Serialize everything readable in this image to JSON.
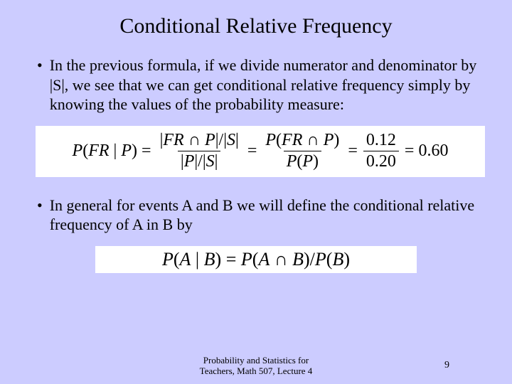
{
  "background_color": "#ccccff",
  "text_color": "#000000",
  "formula_bg": "#ffffff",
  "title": "Conditional Relative Frequency",
  "title_fontsize": 30,
  "body_fontsize": 22,
  "bullets": [
    "In the previous formula, if we divide numerator and denominator by |S|, we see that we can get conditional relative frequency simply by knowing the values of the probability measure:",
    "In general for events A and B we will define the conditional relative frequency of A in B by"
  ],
  "formula1": {
    "lhs": "P(FR | P)",
    "frac1_num": "|FR ∩ P| / |S|",
    "frac1_den": "|P| / |S|",
    "frac2_num": "P(FR ∩ P)",
    "frac2_den": "P(P)",
    "frac3_num": "0.12",
    "frac3_den": "0.20",
    "result": "0.60"
  },
  "formula2": "P(A | B) = P(A ∩ B) / P(B)",
  "footer_line1": "Probability and Statistics for",
  "footer_line2": "Teachers, Math 507, Lecture 4",
  "page_number": "9"
}
